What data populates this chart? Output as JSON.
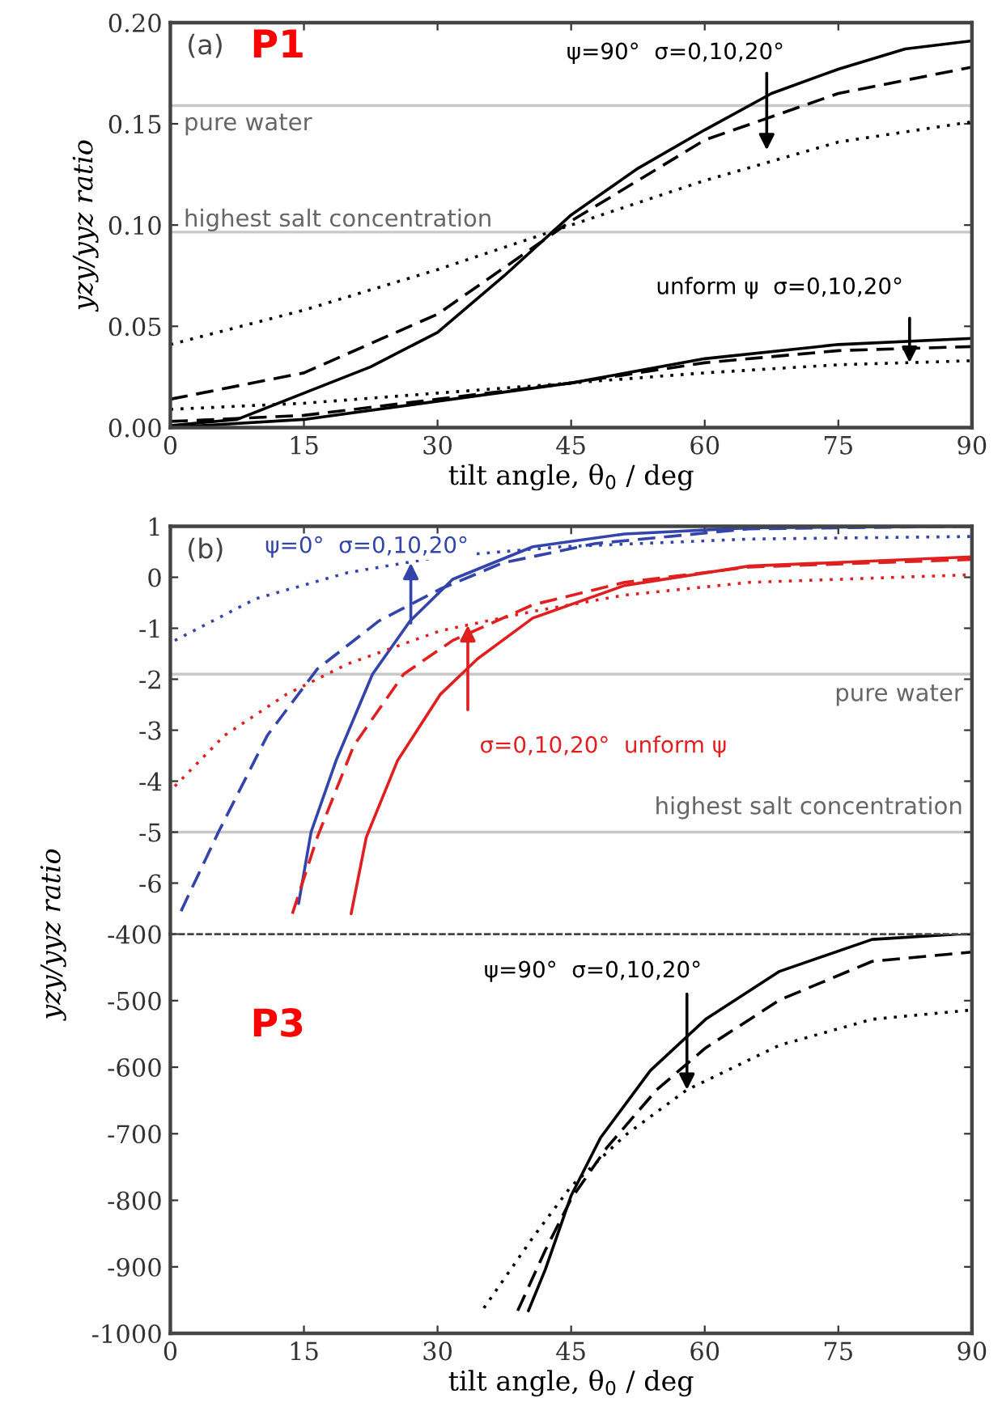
{
  "chart_data": [
    {
      "type": "line",
      "title": "(a)",
      "xlabel": "tilt angle, θ$_{0}$ / deg",
      "ylabel": "yzy/yyz ratio",
      "xlim": [
        0,
        90
      ],
      "ylim": [
        0,
        0.2
      ],
      "xticks": [
        0,
        15,
        30,
        45,
        60,
        75,
        90
      ],
      "yticks": [
        {
          "value": 0,
          "label": "0.00"
        },
        0.05,
        {
          "value": 0.1,
          "label": "0.10"
        },
        0.15,
        {
          "value": 0.2,
          "label": "0.20"
        }
      ],
      "grid": false,
      "ref_lines": [
        {
          "axis": "y",
          "value": 0.159,
          "label": "pure water",
          "color": "#c8c8c8"
        },
        {
          "axis": "y",
          "value": 0.0965,
          "label": "highest salt concentration",
          "color": "#c8c8c8"
        }
      ],
      "annotations": [
        "P1",
        "ψ=90°  σ=0,10,20°",
        {
          "text": "unform ψ  σ=0,10,20°",
          "x": 83,
          "y": 0.032
        }
      ],
      "series": [
        {
          "color": "#000000",
          "line_style": "solid",
          "x": [
            0,
            7.5,
            15,
            22.5,
            30,
            37.5,
            45,
            52.5,
            60,
            67.5,
            75,
            82.5,
            90
          ],
          "values": [
            0.001,
            0.004,
            0.017,
            0.03,
            0.047,
            0.075,
            0.105,
            0.128,
            0.147,
            0.165,
            0.177,
            0.187,
            0.191
          ]
        },
        {
          "color": "#000000",
          "line_style": "dashed",
          "x": [
            0,
            15,
            30,
            45,
            60,
            75,
            90
          ],
          "values": [
            0.014,
            0.027,
            0.056,
            0.102,
            0.142,
            0.165,
            0.178
          ]
        },
        {
          "color": "#000000",
          "line_style": "dotted",
          "x": [
            0,
            15,
            30,
            45,
            60,
            75,
            90
          ],
          "values": [
            0.041,
            0.058,
            0.078,
            0.1,
            0.122,
            0.141,
            0.151
          ]
        },
        {
          "color": "#000000",
          "line_style": "solid",
          "x": [
            0,
            15,
            30,
            45,
            60,
            75,
            90
          ],
          "values": [
            0.0,
            0.004,
            0.013,
            0.022,
            0.034,
            0.041,
            0.044
          ]
        },
        {
          "color": "#000000",
          "line_style": "dashed",
          "x": [
            0,
            15,
            30,
            45,
            60,
            75,
            90
          ],
          "values": [
            0.003,
            0.006,
            0.014,
            0.022,
            0.032,
            0.038,
            0.04
          ]
        },
        {
          "color": "#000000",
          "line_style": "dotted",
          "x": [
            0,
            15,
            30,
            45,
            60,
            75,
            90
          ],
          "values": [
            0.009,
            0.012,
            0.017,
            0.022,
            0.027,
            0.031,
            0.033
          ]
        }
      ]
    },
    {
      "type": "line",
      "title": "(b)",
      "xlim": [
        0,
        90
      ],
      "ylim": [
        -7,
        1
      ],
      "yticks": [
        -6,
        -5,
        -4,
        -3,
        -2,
        -1,
        0,
        1
      ],
      "tick_labels": "y",
      "grid": false,
      "ref_lines": [
        {
          "axis": "y",
          "value": -1.9,
          "label": "pure water",
          "color": "#c8c8c8"
        },
        {
          "axis": "y",
          "value": -5,
          "label": "highest salt concentration",
          "color": "#c8c8c8"
        }
      ],
      "annotations": [
        "ψ=0°  σ=0,10,20°",
        {
          "text": "σ=0,10,20°  unform ψ",
          "x": 33.4,
          "y": -0.94
        }
      ],
      "series": [
        {
          "color": "#3344aa",
          "line_style": "solid",
          "x": [
            14.4,
            15.8,
            18.6,
            22.7,
            26.9,
            31.7,
            40.7,
            51,
            65,
            90
          ],
          "values": [
            -6.4,
            -5,
            -3.6,
            -1.9,
            -0.86,
            -0.04,
            0.6,
            0.85,
            0.97,
            1.0
          ]
        },
        {
          "color": "#3344aa",
          "line_style": "dashed",
          "x": [
            1.2,
            5.4,
            10.9,
            16.5,
            23.4,
            30.3,
            37.3,
            47.6,
            65,
            90
          ],
          "values": [
            -6.55,
            -5,
            -3.1,
            -1.8,
            -0.86,
            -0.23,
            0.28,
            0.66,
            0.95,
            1.0
          ]
        },
        {
          "color": "#3344aa",
          "line_style": "dotted",
          "x": [
            0.5,
            9.6,
            19.9,
            30.3,
            44,
            65,
            90
          ],
          "values": [
            -1.24,
            -0.42,
            0.09,
            0.4,
            0.6,
            0.75,
            0.8
          ]
        },
        {
          "color": "#e02020",
          "line_style": "solid",
          "x": [
            20.3,
            22,
            25.5,
            30.3,
            34.5,
            40.7,
            51,
            65,
            90
          ],
          "values": [
            -6.6,
            -5.1,
            -3.6,
            -2.3,
            -1.6,
            -0.8,
            -0.16,
            0.22,
            0.4
          ]
        },
        {
          "color": "#e02020",
          "line_style": "dashed",
          "x": [
            13.7,
            16.5,
            20.6,
            26.2,
            31.7,
            40.7,
            51,
            65,
            90
          ],
          "values": [
            -6.6,
            -5.1,
            -3.3,
            -1.9,
            -1.24,
            -0.54,
            -0.1,
            0.2,
            0.35
          ]
        },
        {
          "color": "#e02020",
          "line_style": "dotted",
          "x": [
            0.5,
            6.1,
            13,
            19.9,
            30.3,
            40.7,
            51,
            65,
            90
          ],
          "values": [
            -4.1,
            -3.1,
            -2.3,
            -1.7,
            -1.05,
            -0.67,
            -0.35,
            -0.1,
            0.05
          ]
        }
      ]
    },
    {
      "type": "line",
      "xlabel": "tilt angle, θ$_{0}$ / deg",
      "ylabel": "yzy/yyz ratio",
      "xlim": [
        0,
        90
      ],
      "ylim": [
        -1000,
        -400
      ],
      "xticks": [
        0,
        15,
        30,
        45,
        60,
        75,
        90
      ],
      "yticks": [
        -1000,
        -900,
        -800,
        -700,
        -600,
        -500,
        -400
      ],
      "grid": false,
      "annotations": [
        "P3",
        {
          "text": "ψ=90°  σ=0,10,20°",
          "x": 58,
          "y": -634
        }
      ],
      "series": [
        {
          "color": "#000000",
          "line_style": "solid",
          "x": [
            40.2,
            42.1,
            45,
            48.3,
            53.9,
            60.1,
            68.4,
            78.8,
            88.5,
            90
          ],
          "values": [
            -966,
            -904,
            -793,
            -706,
            -605,
            -528,
            -456,
            -408,
            -400,
            -400
          ]
        },
        {
          "color": "#000000",
          "line_style": "dashed",
          "x": [
            39,
            42.1,
            45,
            49,
            54.6,
            60.1,
            68.4,
            78.8,
            90
          ],
          "values": [
            -966,
            -875,
            -798,
            -721,
            -634,
            -571,
            -499,
            -441,
            -427
          ]
        },
        {
          "color": "#000000",
          "line_style": "dotted",
          "x": [
            35.2,
            40.7,
            45,
            51.1,
            58,
            68.4,
            78.8,
            90
          ],
          "values": [
            -962,
            -856,
            -779,
            -702,
            -634,
            -567,
            -528,
            -514
          ]
        }
      ]
    }
  ]
}
